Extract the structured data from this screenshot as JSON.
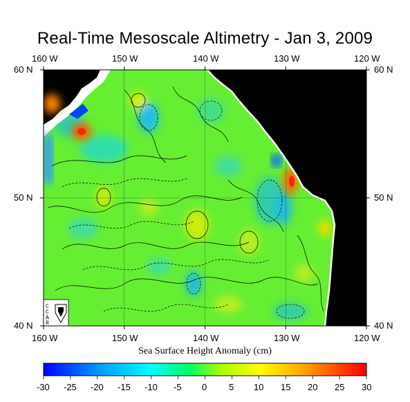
{
  "map": {
    "title": "Real-Time Mesoscale Altimetry - Jan 3, 2009",
    "lon_labels": [
      "160 W",
      "150 W",
      "140 W",
      "130 W",
      "120 W"
    ],
    "lat_labels": [
      "60 N",
      "50 N",
      "40 N"
    ],
    "logo_text": "CCAR",
    "colorbar": {
      "title": "Sea Surface Height Anomaly (cm)",
      "ticks": [
        "-30",
        "-25",
        "-20",
        "-15",
        "-10",
        "-5",
        "0",
        "5",
        "10",
        "15",
        "20",
        "25",
        "30"
      ],
      "colors": [
        "#0000ff",
        "#00aaff",
        "#00ffff",
        "#00ff66",
        "#aaff00",
        "#ffff00",
        "#ffaa00",
        "#ff5500",
        "#ff0000"
      ]
    }
  }
}
